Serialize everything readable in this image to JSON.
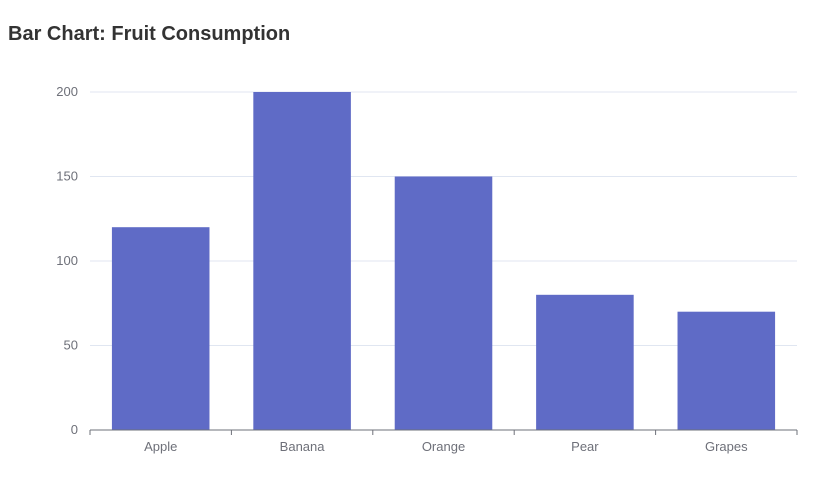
{
  "title": "Bar Chart: Fruit Consumption",
  "chart_data": {
    "type": "bar",
    "title": "Bar Chart: Fruit Consumption",
    "categories": [
      "Apple",
      "Banana",
      "Orange",
      "Pear",
      "Grapes"
    ],
    "values": [
      120,
      200,
      150,
      80,
      70
    ],
    "xlabel": "",
    "ylabel": "",
    "ylim": [
      0,
      200
    ],
    "yticks": [
      0,
      50,
      100,
      150,
      200
    ],
    "grid": true,
    "legend": "none"
  },
  "colors": {
    "bar": "#5f6bc6",
    "grid": "#e0e6f1",
    "axis": "#6e7079",
    "title": "#333333"
  }
}
